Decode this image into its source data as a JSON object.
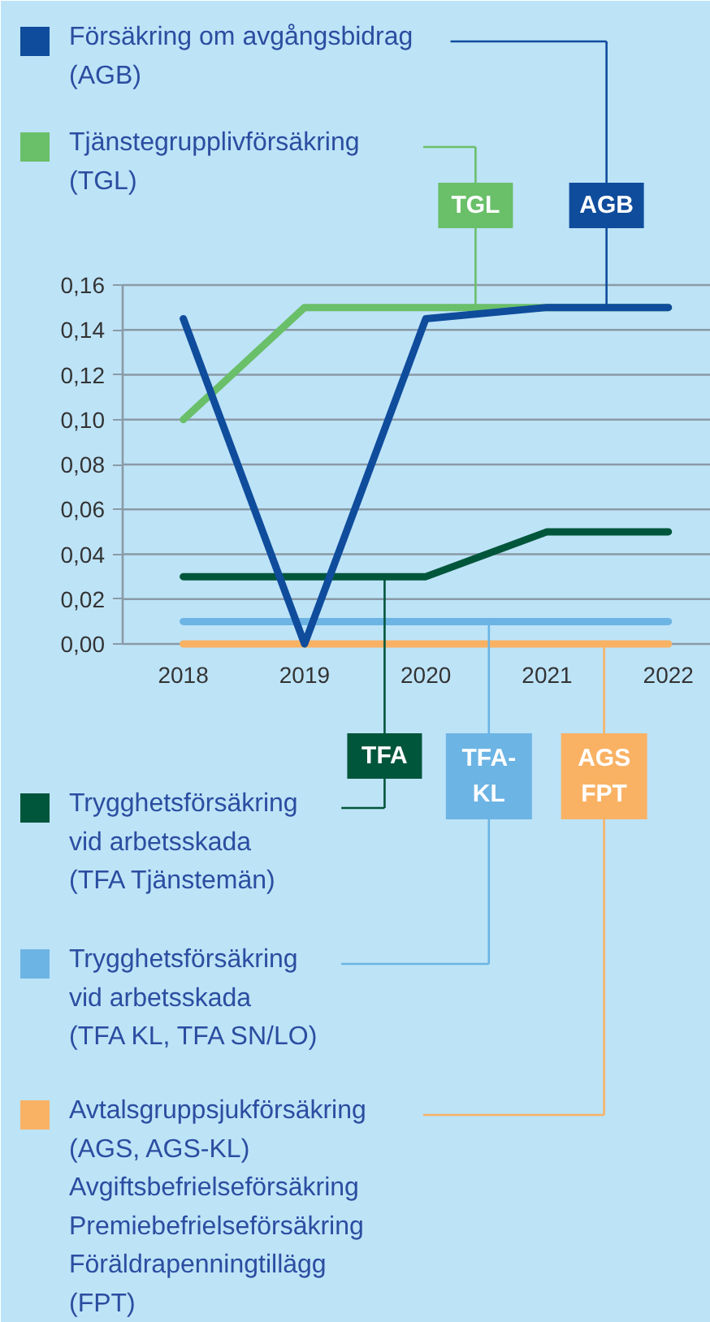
{
  "chart_data": {
    "type": "line",
    "x": [
      2018,
      2019,
      2020,
      2021,
      2022
    ],
    "xlim": [
      2017.5,
      2022.35
    ],
    "xticks": [
      2018,
      2019,
      2020,
      2021,
      2022
    ],
    "ylim": [
      0,
      0.16
    ],
    "yticks": [
      {
        "value": 0,
        "label": "0,00"
      },
      {
        "value": 0.02,
        "label": "0,02"
      },
      {
        "value": 0.04,
        "label": "0,04"
      },
      {
        "value": 0.06,
        "label": "0,06"
      },
      {
        "value": 0.08,
        "label": "0,08"
      },
      {
        "value": 0.1,
        "label": "0,10"
      },
      {
        "value": 0.12,
        "label": "0,12"
      },
      {
        "value": 0.14,
        "label": "0,14"
      },
      {
        "value": 0.16,
        "label": "0,16"
      }
    ],
    "grid": "y",
    "legend": "left",
    "series": [
      {
        "name": "Försäkring om avgångsbidrag\n(AGB)",
        "color": "#0f4c9c",
        "values": [
          0.145,
          0,
          0.145,
          0.15,
          0.15
        ]
      },
      {
        "name": "Tjänstegrupplivförsäkring\n(TGL)",
        "color": "#6abf69",
        "values": [
          0.1,
          0.15,
          0.15,
          0.15,
          0.15
        ]
      },
      {
        "name": "Trygghetsförsäkring\nvid arbetsskada\n(TFA Tjänstemän)",
        "color": "#00563b",
        "values": [
          0.03,
          0.03,
          0.03,
          0.05,
          0.05
        ]
      },
      {
        "name": "Trygghetsförsäkring\nvid arbetsskada\n(TFA KL, TFA SN/LO)",
        "color": "#6cb4e4",
        "values": [
          0.01,
          0.01,
          0.01,
          0.01,
          0.01
        ]
      },
      {
        "name": "Avtalsgruppsjukförsäkring\n(AGS, AGS-KL)\nAvgiftsbefrielseförsäkring\nPremiebefrielseförsäkring\nFöräldrapenningtillägg\n(FPT)",
        "color": "#f9b264",
        "values": [
          0,
          0,
          0,
          0,
          0
        ]
      }
    ],
    "annotations": [
      {
        "text": "AGB",
        "x": 2021.49,
        "y": 0.15
      },
      {
        "text": "TGL",
        "x": 2020.41,
        "y": 0.15
      },
      {
        "text": "TFA",
        "x": 2019.66,
        "y": 0.03
      },
      {
        "text": "TFA-\nKL",
        "x": 2020.52,
        "y": 0.01
      },
      {
        "text": "AGS\nFPT",
        "x": 2021.47,
        "y": 0
      }
    ]
  }
}
